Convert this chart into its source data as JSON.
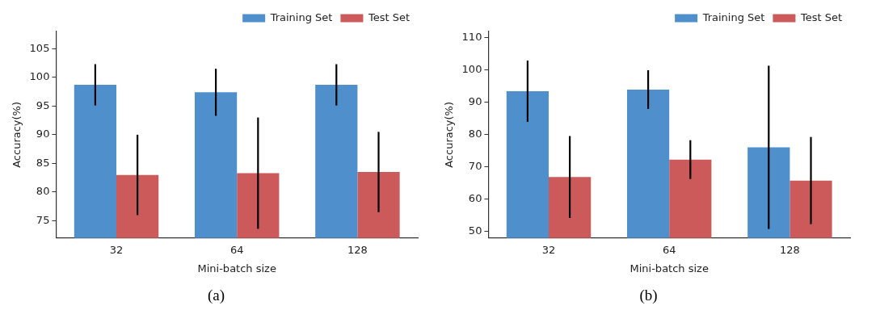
{
  "chart_data": [
    {
      "type": "bar",
      "xlabel": "Mini-batch size",
      "ylabel": "Accuracy(%)",
      "categories": [
        "32",
        "64",
        "128"
      ],
      "series": [
        {
          "name": "Training Set",
          "color": "#4f8fcc",
          "values": [
            98.7,
            97.4,
            98.7
          ],
          "errors": [
            3.6,
            4.1,
            3.6
          ]
        },
        {
          "name": "Test Set",
          "color": "#cc5a5a",
          "values": [
            83.0,
            83.3,
            83.5
          ],
          "errors": [
            7.0,
            9.7,
            7.0
          ]
        }
      ],
      "ylim": [
        72,
        108
      ],
      "yticks": [
        75,
        80,
        85,
        90,
        95,
        100,
        105
      ],
      "grid": false,
      "legend": "top right",
      "annotations": [
        "(a)"
      ]
    },
    {
      "type": "bar",
      "xlabel": "Mini-batch size",
      "ylabel": "Accuracy(%)",
      "categories": [
        "32",
        "64",
        "128"
      ],
      "series": [
        {
          "name": "Training Set",
          "color": "#4f8fcc",
          "values": [
            93.5,
            94.0,
            76.1
          ],
          "errors": [
            9.5,
            6.0,
            25.3
          ]
        },
        {
          "name": "Test Set",
          "color": "#cc5a5a",
          "values": [
            66.9,
            72.3,
            65.8
          ],
          "errors": [
            12.7,
            6.0,
            13.5
          ]
        }
      ],
      "ylim": [
        48,
        112
      ],
      "yticks": [
        50,
        60,
        70,
        80,
        90,
        100,
        110
      ],
      "grid": false,
      "legend": "top right",
      "annotations": [
        "(b)"
      ]
    }
  ]
}
